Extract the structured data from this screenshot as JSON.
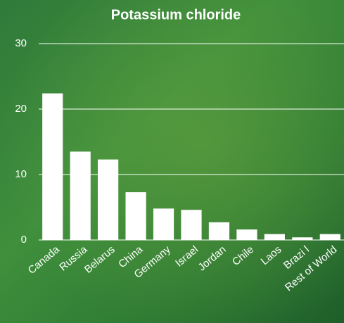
{
  "chart_data": {
    "type": "bar",
    "title": "Potassium chloride",
    "categories": [
      "Canada",
      "Russia",
      "Belarus",
      "China",
      "Germany",
      "Israel",
      "Jordan",
      "Chile",
      "Laos",
      "Brazi l",
      "Rest of World"
    ],
    "values": [
      22.4,
      13.5,
      12.3,
      7.3,
      4.8,
      4.6,
      2.7,
      1.6,
      0.9,
      0.4,
      0.9
    ],
    "color": "#ffffff",
    "ylim": [
      0,
      30
    ],
    "yticks": [
      0,
      10,
      20,
      30
    ],
    "grid": true
  }
}
